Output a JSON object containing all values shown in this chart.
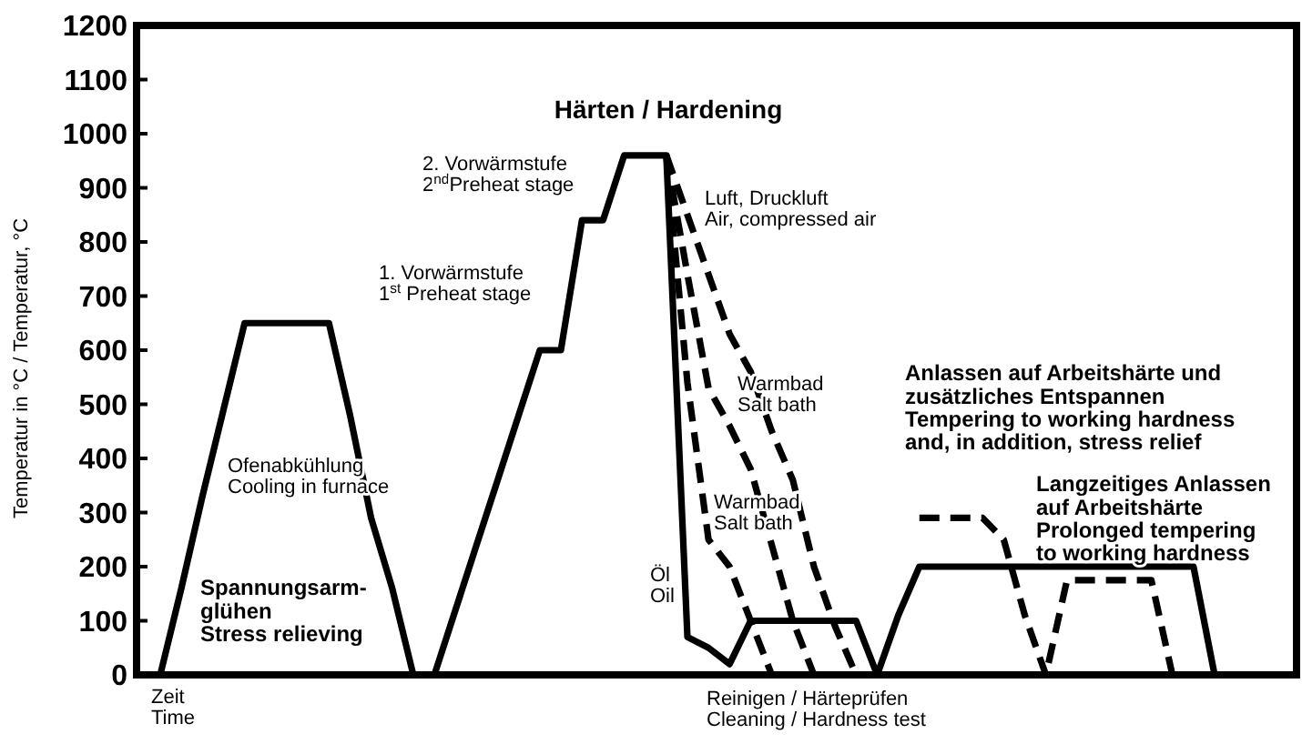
{
  "chart_data": {
    "type": "line",
    "title": "Härten / Hardening",
    "xlabel": "Zeit\nTime",
    "ylabel": "Temperatur in °C / Temperatur, °C",
    "categories": [
      null,
      null,
      null,
      null,
      null,
      null,
      null,
      null,
      null,
      null,
      null,
      null,
      null,
      null,
      null,
      null,
      null,
      null,
      null,
      null,
      null,
      null,
      null,
      null,
      null,
      null,
      null,
      null,
      null,
      null,
      null,
      null,
      null,
      null,
      null,
      null,
      null,
      null,
      null,
      null,
      null,
      null,
      null,
      null,
      null,
      null,
      null,
      null,
      null,
      null,
      null
    ],
    "ylim": [
      0,
      1200
    ],
    "yticks": [
      0,
      100,
      200,
      300,
      400,
      500,
      600,
      700,
      800,
      900,
      1000,
      1100,
      1200
    ],
    "tick_labels": "y",
    "series": [
      {
        "color": "#000000",
        "line_style": "solid",
        "values": [
          0,
          160,
          330,
          490,
          650,
          650,
          650,
          650,
          650,
          480,
          290,
          160,
          0,
          0,
          120,
          240,
          360,
          480,
          600,
          600,
          840,
          840,
          960,
          960,
          960,
          70,
          50,
          20,
          100,
          100,
          100,
          100,
          100,
          100,
          0,
          110,
          200,
          200,
          200,
          200,
          200,
          200,
          200,
          200,
          200,
          200,
          200,
          200,
          200,
          200,
          0
        ]
      },
      {
        "color": "#000000",
        "line_style": "dashed",
        "values": [
          null,
          null,
          null,
          null,
          null,
          null,
          null,
          null,
          null,
          null,
          null,
          null,
          null,
          null,
          null,
          null,
          null,
          null,
          null,
          null,
          null,
          null,
          null,
          null,
          960,
          850,
          740,
          630,
          560,
          450,
          360,
          200,
          90,
          0,
          null,
          null,
          null,
          null,
          null,
          null,
          null,
          null,
          null,
          null,
          null,
          null,
          null,
          null,
          null,
          null,
          null
        ]
      },
      {
        "color": "#000000",
        "line_style": "dashed",
        "values": [
          null,
          null,
          null,
          null,
          null,
          null,
          null,
          null,
          null,
          null,
          null,
          null,
          null,
          null,
          null,
          null,
          null,
          null,
          null,
          null,
          null,
          null,
          null,
          null,
          960,
          740,
          530,
          460,
          380,
          240,
          100,
          0,
          null,
          null,
          null,
          null,
          null,
          null,
          null,
          null,
          null,
          null,
          null,
          null,
          null,
          null,
          null,
          null,
          null,
          null,
          null
        ]
      },
      {
        "color": "#000000",
        "line_style": "dashed",
        "values": [
          null,
          null,
          null,
          null,
          null,
          null,
          null,
          null,
          null,
          null,
          null,
          null,
          null,
          null,
          null,
          null,
          null,
          null,
          null,
          null,
          null,
          null,
          null,
          null,
          960,
          540,
          250,
          200,
          100,
          0,
          null,
          null,
          null,
          null,
          null,
          null,
          null,
          null,
          null,
          null,
          null,
          null,
          null,
          null,
          null,
          null,
          null,
          null,
          null,
          null,
          null
        ]
      },
      {
        "color": "#000000",
        "line_style": "dashed",
        "values": [
          null,
          null,
          null,
          null,
          null,
          null,
          null,
          null,
          null,
          null,
          null,
          null,
          null,
          null,
          null,
          null,
          null,
          null,
          null,
          null,
          null,
          null,
          null,
          null,
          null,
          null,
          null,
          null,
          null,
          null,
          null,
          null,
          null,
          null,
          null,
          null,
          290,
          290,
          290,
          290,
          250,
          110,
          0,
          175,
          175,
          175,
          175,
          175,
          0,
          null,
          null
        ]
      }
    ],
    "annotations": [
      "2. Vorwärmstufe\n2$^{nd}$Preheat stage",
      "1. Vorwärmstufe\n1$^{st}$ Preheat stage",
      "Ofenabkühlung\nCooling in furnace",
      "Spannungsarm-\nglühen\nStress relieving",
      "Luft, Druckluft\nAir, compressed air",
      "Warmbad\nSalt bath",
      "Warmbad\nSalt bath",
      "Öl\nOil",
      "Anlassen auf Arbeitshärte und\nzusätzliches Entspannen\nTempering to working hardness\nand, in addition, stress relief",
      "Langzeitiges Anlassen\nauf Arbeitshärte\nProlonged tempering\nto working hardness",
      "Reinigen / Härteprüfen\nCleaning / Hardness test"
    ]
  }
}
